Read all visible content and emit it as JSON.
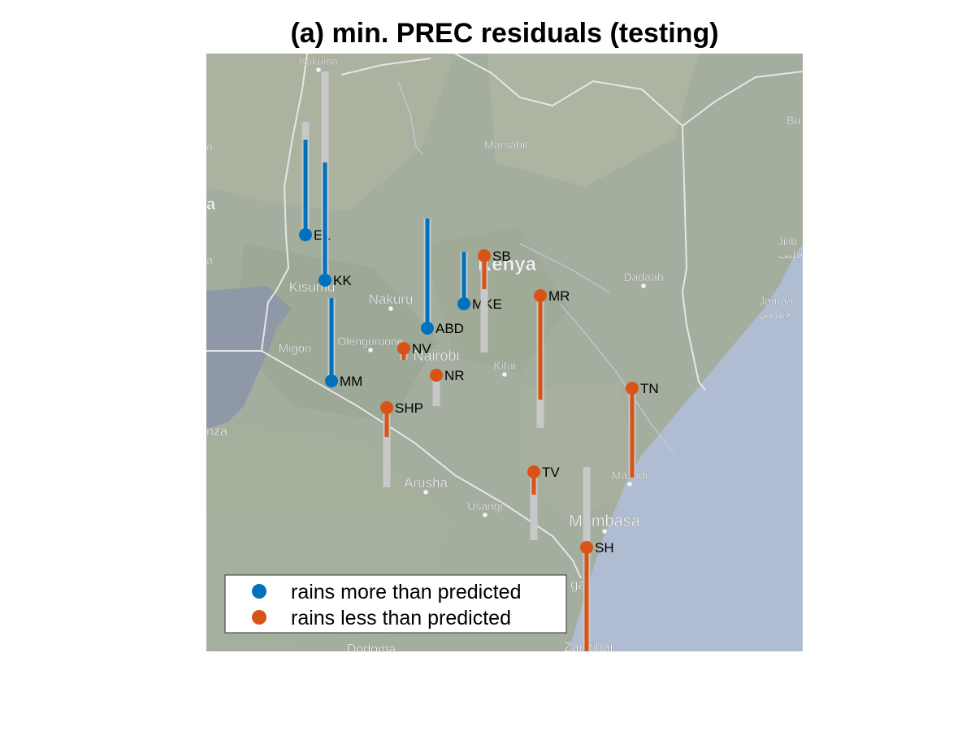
{
  "title": "(a) min. PREC residuals (testing)",
  "colors": {
    "more": "#0072BD",
    "less": "#D95319",
    "bar": "#C8C8C8",
    "land": "#A3AE9E",
    "ocean": "#B0BCD2",
    "lake": "#8E98A6",
    "border": "#E6E6E6",
    "place": "#F4F4F4"
  },
  "places": [
    {
      "name": "Kakuma"
    },
    {
      "name": "Marsabit"
    },
    {
      "name": "Bu"
    },
    {
      "name": "a"
    },
    {
      "name": "a"
    },
    {
      "name": "Jilib"
    },
    {
      "name": "جليب"
    },
    {
      "name": "Dadaab"
    },
    {
      "name": "Jamaa"
    },
    {
      "name": "جمامى"
    },
    {
      "name": "a"
    },
    {
      "name": "Kisumu"
    },
    {
      "name": "Nakuru"
    },
    {
      "name": "Migori"
    },
    {
      "name": "Olenguruone"
    },
    {
      "name": "Nairobi"
    },
    {
      "name": "Kitui"
    },
    {
      "name": "nza"
    },
    {
      "name": "Arusha"
    },
    {
      "name": "Usangi"
    },
    {
      "name": "Malindi"
    },
    {
      "name": "Mombasa"
    },
    {
      "name": "ga"
    },
    {
      "name": "Dodoma"
    },
    {
      "name": "Zanzibar"
    },
    {
      "name": "Kenya"
    }
  ],
  "stations": [
    {
      "code": "EL",
      "sign": "more"
    },
    {
      "code": "KK",
      "sign": "more"
    },
    {
      "code": "MM",
      "sign": "more"
    },
    {
      "code": "ABD",
      "sign": "more"
    },
    {
      "code": "MKE",
      "sign": "more"
    },
    {
      "code": "SB",
      "sign": "less"
    },
    {
      "code": "MR",
      "sign": "less"
    },
    {
      "code": "NV",
      "sign": "less"
    },
    {
      "code": "NR",
      "sign": "less"
    },
    {
      "code": "SHP",
      "sign": "less"
    },
    {
      "code": "TN",
      "sign": "less"
    },
    {
      "code": "TV",
      "sign": "less"
    },
    {
      "code": "SH",
      "sign": "less"
    }
  ],
  "legend": {
    "items": [
      {
        "label": "rains more than predicted",
        "color_key": "more"
      },
      {
        "label": "rains less than predicted",
        "color_key": "less"
      }
    ]
  }
}
